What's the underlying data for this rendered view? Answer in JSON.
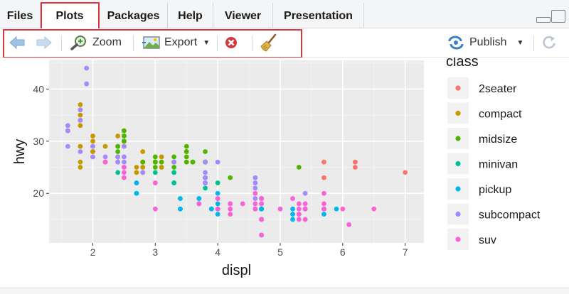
{
  "tabs": [
    {
      "label": "Files",
      "active": false
    },
    {
      "label": "Plots",
      "active": true
    },
    {
      "label": "Packages",
      "active": false
    },
    {
      "label": "Help",
      "active": false
    },
    {
      "label": "Viewer",
      "active": false
    },
    {
      "label": "Presentation",
      "active": false
    }
  ],
  "toolbar": {
    "zoom_label": "Zoom",
    "export_label": "Export",
    "publish_label": "Publish"
  },
  "colors": {
    "highlight": "#d9363e",
    "panel_bg": "#ebebeb",
    "grid": "#ffffff"
  },
  "chart_data": {
    "type": "scatter",
    "xlabel": "displ",
    "ylabel": "hwy",
    "xlim": [
      1.3,
      7.3
    ],
    "ylim": [
      10.5,
      45.5
    ],
    "xticks": [
      2,
      3,
      4,
      5,
      6,
      7
    ],
    "yticks": [
      20,
      30,
      40
    ],
    "grid": true,
    "legend": {
      "title": "class",
      "placement": "right"
    },
    "series": [
      {
        "name": "2seater",
        "color": "#f8766d",
        "points": [
          [
            5.7,
            26
          ],
          [
            5.7,
            23
          ],
          [
            6.2,
            26
          ],
          [
            6.2,
            25
          ],
          [
            7.0,
            24
          ]
        ]
      },
      {
        "name": "compact",
        "color": "#c49a00",
        "points": [
          [
            1.8,
            29
          ],
          [
            1.8,
            29
          ],
          [
            2.0,
            31
          ],
          [
            2.0,
            30
          ],
          [
            2.8,
            26
          ],
          [
            2.8,
            26
          ],
          [
            3.1,
            27
          ],
          [
            1.8,
            26
          ],
          [
            1.8,
            25
          ],
          [
            2.0,
            28
          ],
          [
            2.0,
            28
          ],
          [
            2.8,
            24
          ],
          [
            2.8,
            25
          ],
          [
            3.1,
            25
          ],
          [
            3.1,
            25
          ],
          [
            2.2,
            26
          ],
          [
            2.2,
            29
          ],
          [
            2.4,
            27
          ],
          [
            2.4,
            31
          ],
          [
            3.0,
            26
          ],
          [
            2.0,
            27
          ],
          [
            2.5,
            29
          ],
          [
            2.5,
            29
          ],
          [
            1.8,
            35
          ],
          [
            1.8,
            37
          ],
          [
            1.8,
            33
          ],
          [
            1.8,
            34
          ],
          [
            2.0,
            29
          ],
          [
            2.0,
            29
          ],
          [
            2.0,
            28
          ],
          [
            2.5,
            30
          ],
          [
            2.7,
            25
          ],
          [
            2.7,
            24
          ],
          [
            2.7,
            24
          ],
          [
            2.8,
            28
          ]
        ]
      },
      {
        "name": "midsize",
        "color": "#53b400",
        "points": [
          [
            2.4,
            27
          ],
          [
            2.5,
            32
          ],
          [
            3.3,
            26
          ],
          [
            3.3,
            26
          ],
          [
            3.8,
            26
          ],
          [
            3.8,
            28
          ],
          [
            2.4,
            26
          ],
          [
            2.4,
            28
          ],
          [
            3.5,
            29
          ],
          [
            3.5,
            28
          ],
          [
            3.0,
            26
          ],
          [
            3.3,
            26
          ],
          [
            3.8,
            26
          ],
          [
            3.0,
            25
          ],
          [
            3.0,
            27
          ],
          [
            3.5,
            27
          ],
          [
            2.5,
            31
          ],
          [
            2.5,
            31
          ],
          [
            2.5,
            32
          ],
          [
            2.5,
            30
          ],
          [
            3.0,
            26
          ],
          [
            3.0,
            26
          ],
          [
            3.5,
            28
          ],
          [
            3.5,
            26
          ],
          [
            3.0,
            26
          ],
          [
            3.3,
            25
          ],
          [
            3.3,
            27
          ],
          [
            3.8,
            26
          ],
          [
            4.2,
            23
          ],
          [
            5.3,
            25
          ],
          [
            3.6,
            26
          ],
          [
            2.4,
            27
          ],
          [
            2.4,
            29
          ],
          [
            2.5,
            30
          ],
          [
            3.6,
            26
          ],
          [
            3.8,
            23
          ],
          [
            3.8,
            26
          ],
          [
            2.8,
            26
          ],
          [
            2.4,
            29
          ],
          [
            3.1,
            26
          ]
        ]
      },
      {
        "name": "minivan",
        "color": "#00c094",
        "points": [
          [
            2.4,
            24
          ],
          [
            3.0,
            24
          ],
          [
            3.3,
            22
          ],
          [
            3.3,
            24
          ],
          [
            3.3,
            24
          ],
          [
            3.3,
            22
          ],
          [
            3.3,
            22
          ],
          [
            3.8,
            22
          ],
          [
            3.8,
            23
          ],
          [
            3.8,
            21
          ],
          [
            4.0,
            22
          ]
        ]
      },
      {
        "name": "pickup",
        "color": "#00b6eb",
        "points": [
          [
            3.7,
            19
          ],
          [
            3.7,
            18
          ],
          [
            3.9,
            17
          ],
          [
            3.9,
            17
          ],
          [
            4.7,
            19
          ],
          [
            4.7,
            19
          ],
          [
            4.7,
            12
          ],
          [
            5.2,
            17
          ],
          [
            5.2,
            15
          ],
          [
            5.7,
            17
          ],
          [
            5.9,
            17
          ],
          [
            4.7,
            17
          ],
          [
            4.7,
            17
          ],
          [
            4.7,
            17
          ],
          [
            5.2,
            16
          ],
          [
            5.7,
            16
          ],
          [
            2.7,
            20
          ],
          [
            2.7,
            22
          ],
          [
            3.4,
            17
          ],
          [
            3.4,
            19
          ],
          [
            4.0,
            20
          ],
          [
            4.0,
            17
          ],
          [
            4.7,
            17
          ],
          [
            4.0,
            17
          ],
          [
            4.0,
            16
          ],
          [
            4.6,
            17
          ],
          [
            5.4,
            17
          ],
          [
            2.7,
            20
          ],
          [
            2.7,
            22
          ],
          [
            3.4,
            17
          ],
          [
            4.0,
            18
          ],
          [
            4.0,
            17
          ],
          [
            4.7,
            18
          ],
          [
            4.7,
            15
          ]
        ]
      },
      {
        "name": "subcompact",
        "color": "#a58aff",
        "points": [
          [
            1.6,
            33
          ],
          [
            1.6,
            32
          ],
          [
            1.6,
            32
          ],
          [
            1.6,
            29
          ],
          [
            1.6,
            32
          ],
          [
            1.8,
            34
          ],
          [
            1.8,
            36
          ],
          [
            1.8,
            36
          ],
          [
            2.0,
            29
          ],
          [
            2.4,
            26
          ],
          [
            2.4,
            27
          ],
          [
            2.5,
            26
          ],
          [
            2.5,
            29
          ],
          [
            3.3,
            26
          ],
          [
            3.8,
            26
          ],
          [
            3.8,
            23
          ],
          [
            3.8,
            22
          ],
          [
            3.8,
            24
          ],
          [
            4.0,
            26
          ],
          [
            4.6,
            19
          ],
          [
            5.4,
            20
          ],
          [
            4.6,
            23
          ],
          [
            4.6,
            22
          ],
          [
            4.6,
            21
          ],
          [
            1.9,
            44
          ],
          [
            1.9,
            41
          ],
          [
            2.0,
            29
          ],
          [
            2.5,
            25
          ],
          [
            2.5,
            27
          ],
          [
            1.8,
            28
          ],
          [
            2.8,
            24
          ],
          [
            2.5,
            27
          ],
          [
            2.0,
            27
          ],
          [
            2.2,
            27
          ]
        ]
      },
      {
        "name": "suv",
        "color": "#fb61d7",
        "points": [
          [
            4.7,
            19
          ],
          [
            4.7,
            19
          ],
          [
            5.7,
            17
          ],
          [
            5.3,
            15
          ],
          [
            5.3,
            16
          ],
          [
            5.3,
            17
          ],
          [
            5.3,
            16
          ],
          [
            5.7,
            20
          ],
          [
            6.5,
            17
          ],
          [
            4.2,
            18
          ],
          [
            4.2,
            18
          ],
          [
            4.6,
            17
          ],
          [
            5.4,
            15
          ],
          [
            5.4,
            18
          ],
          [
            5.4,
            17
          ],
          [
            4.0,
            19
          ],
          [
            4.0,
            19
          ],
          [
            4.6,
            20
          ],
          [
            5.0,
            17
          ],
          [
            4.2,
            17
          ],
          [
            4.2,
            16
          ],
          [
            4.7,
            18
          ],
          [
            4.7,
            15
          ],
          [
            4.7,
            12
          ],
          [
            5.7,
            18
          ],
          [
            6.1,
            14
          ],
          [
            4.0,
            17
          ],
          [
            4.7,
            15
          ],
          [
            4.7,
            19
          ],
          [
            5.2,
            19
          ],
          [
            5.3,
            18
          ],
          [
            5.4,
            17
          ],
          [
            6.0,
            17
          ],
          [
            4.0,
            17
          ],
          [
            4.0,
            17
          ],
          [
            3.0,
            22
          ],
          [
            3.0,
            17
          ],
          [
            3.7,
            18
          ],
          [
            2.5,
            23
          ],
          [
            2.5,
            24
          ],
          [
            2.2,
            26
          ],
          [
            2.5,
            25
          ],
          [
            4.4,
            18
          ],
          [
            4.6,
            18
          ],
          [
            5.4,
            17
          ]
        ]
      }
    ]
  }
}
